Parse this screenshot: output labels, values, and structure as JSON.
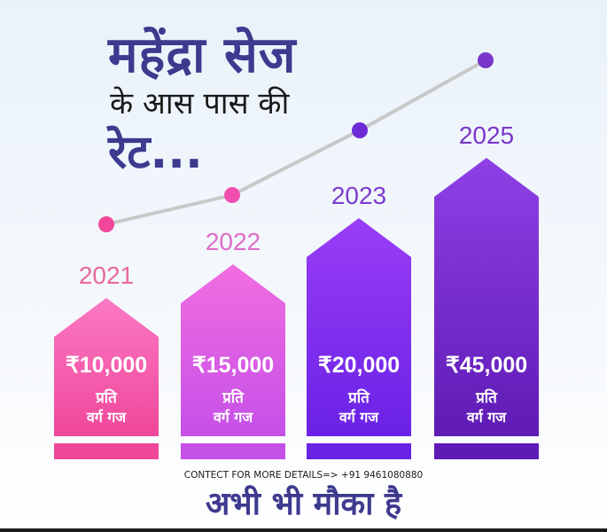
{
  "title": {
    "main": "महेंद्रा सेज",
    "sub": "के आस पास की",
    "ellipsis": "रेट..."
  },
  "chart_data": {
    "type": "bar",
    "categories": [
      "2021",
      "2022",
      "2023",
      "2025"
    ],
    "values": [
      10000,
      15000,
      20000,
      45000
    ],
    "value_labels": [
      "₹10,000",
      "₹15,000",
      "₹20,000",
      "₹45,000"
    ],
    "unit_line1": "प्रति",
    "unit_line2": "वर्ग गज",
    "trend_line": true,
    "colors": {
      "bars_top": [
        "#fb79c4",
        "#f26de0",
        "#9a3df6",
        "#8f40e6"
      ],
      "bars_bottom": [
        "#f0479a",
        "#c550e8",
        "#6a22e6",
        "#5f1bb5"
      ],
      "year_labels": [
        "#e7699b",
        "#e06cc8",
        "#7d3bd0",
        "#7a36c8"
      ],
      "trend_line": "#c8c8c8",
      "trend_dots": [
        "#f0479a",
        "#f04fb1",
        "#6d2bd8",
        "#7a36c8"
      ]
    }
  },
  "contact": "CONTECT FOR MORE DETAILS=> +91 9461080880",
  "tagline": "अभी भी मौका है"
}
